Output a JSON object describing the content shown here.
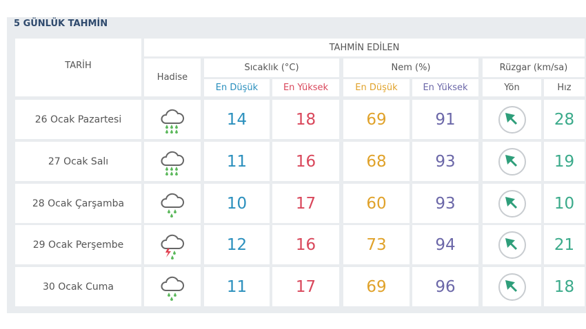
{
  "title": "5 GÜNLÜK TAHMİN",
  "header": {
    "date": "TARİH",
    "forecast": "TAHMİN EDİLEN",
    "event": "Hadise",
    "temperature": "Sıcaklık (°C)",
    "humidity": "Nem (%)",
    "wind": "Rüzgar (km/sa)",
    "temp_min": "En Düşük",
    "temp_max": "En Yüksek",
    "hum_min": "En Düşük",
    "hum_max": "En Yüksek",
    "direction": "Yön",
    "speed": "Hız"
  },
  "rows": [
    {
      "date": "26 Ocak Pazartesi",
      "temp_min": 14,
      "temp_max": 18,
      "hum_min": 69,
      "hum_max": 91,
      "speed": 28
    },
    {
      "date": "27 Ocak Salı",
      "temp_min": 11,
      "temp_max": 16,
      "hum_min": 68,
      "hum_max": 93,
      "speed": 19
    },
    {
      "date": "28 Ocak Çarşamba",
      "temp_min": 10,
      "temp_max": 17,
      "hum_min": 60,
      "hum_max": 93,
      "speed": 10
    },
    {
      "date": "29 Ocak Perşembe",
      "temp_min": 12,
      "temp_max": 16,
      "hum_min": 73,
      "hum_max": 94,
      "speed": 21
    },
    {
      "date": "30 Ocak Cuma",
      "temp_min": 11,
      "temp_max": 17,
      "hum_min": 69,
      "hum_max": 96,
      "speed": 18
    }
  ]
}
